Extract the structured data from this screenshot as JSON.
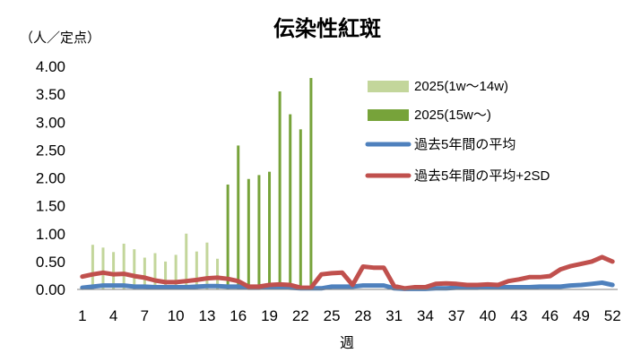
{
  "chart_data": {
    "type": "bar",
    "title": "伝染性紅斑",
    "ylabel": "（人／定点）",
    "xlabel": "週",
    "ylim": [
      0,
      4.0
    ],
    "yticks": [
      "0.00",
      "0.50",
      "1.00",
      "1.50",
      "2.00",
      "2.50",
      "3.00",
      "3.50",
      "4.00"
    ],
    "xticks": [
      "1",
      "4",
      "7",
      "10",
      "13",
      "16",
      "19",
      "22",
      "25",
      "28",
      "31",
      "34",
      "37",
      "40",
      "43",
      "46",
      "49",
      "52"
    ],
    "grid": false,
    "legend_position": "top-right",
    "series": [
      {
        "name": "2025(1w～14w)",
        "kind": "bar",
        "color": "#c3d69b",
        "x": [
          1,
          2,
          3,
          4,
          5,
          6,
          7,
          8,
          9,
          10,
          11,
          12,
          13,
          14
        ],
        "values": [
          0.06,
          0.8,
          0.75,
          0.67,
          0.82,
          0.72,
          0.57,
          0.65,
          0.5,
          0.62,
          1.0,
          0.68,
          0.84,
          0.55
        ]
      },
      {
        "name": "2025(15w～)",
        "kind": "bar",
        "color": "#77a33a",
        "x": [
          15,
          16,
          17,
          18,
          19,
          20,
          21,
          22,
          23
        ],
        "values": [
          1.88,
          2.58,
          1.98,
          2.05,
          2.11,
          3.55,
          3.14,
          2.87,
          3.79
        ]
      },
      {
        "name": "過去5年間の平均",
        "kind": "line",
        "color": "#4f81bd",
        "x": [
          1,
          2,
          3,
          4,
          5,
          6,
          7,
          8,
          9,
          10,
          11,
          12,
          13,
          14,
          15,
          16,
          17,
          18,
          19,
          20,
          21,
          22,
          23,
          24,
          25,
          26,
          27,
          28,
          29,
          30,
          31,
          32,
          33,
          34,
          35,
          36,
          37,
          38,
          39,
          40,
          41,
          42,
          43,
          44,
          45,
          46,
          47,
          48,
          49,
          50,
          51,
          52
        ],
        "values": [
          0.03,
          0.05,
          0.07,
          0.07,
          0.07,
          0.05,
          0.05,
          0.04,
          0.04,
          0.04,
          0.04,
          0.05,
          0.06,
          0.06,
          0.05,
          0.05,
          0.03,
          0.03,
          0.04,
          0.04,
          0.03,
          0.02,
          0.02,
          0.02,
          0.05,
          0.05,
          0.05,
          0.07,
          0.07,
          0.07,
          0.02,
          0.01,
          0.01,
          0.01,
          0.02,
          0.02,
          0.03,
          0.03,
          0.03,
          0.04,
          0.04,
          0.04,
          0.04,
          0.04,
          0.05,
          0.05,
          0.05,
          0.07,
          0.08,
          0.1,
          0.12,
          0.08
        ]
      },
      {
        "name": "過去5年間の平均+2SD",
        "kind": "line",
        "color": "#c0504d",
        "x": [
          1,
          2,
          3,
          4,
          5,
          6,
          7,
          8,
          9,
          10,
          11,
          12,
          13,
          14,
          15,
          16,
          17,
          18,
          19,
          20,
          21,
          22,
          23,
          24,
          25,
          26,
          27,
          28,
          29,
          30,
          31,
          32,
          33,
          34,
          35,
          36,
          37,
          38,
          39,
          40,
          41,
          42,
          43,
          44,
          45,
          46,
          47,
          48,
          49,
          50,
          51,
          52
        ],
        "values": [
          0.23,
          0.27,
          0.3,
          0.27,
          0.28,
          0.24,
          0.21,
          0.16,
          0.13,
          0.13,
          0.15,
          0.17,
          0.2,
          0.21,
          0.19,
          0.15,
          0.05,
          0.05,
          0.08,
          0.09,
          0.08,
          0.03,
          0.03,
          0.27,
          0.29,
          0.3,
          0.08,
          0.41,
          0.39,
          0.39,
          0.06,
          0.02,
          0.04,
          0.04,
          0.1,
          0.11,
          0.1,
          0.08,
          0.08,
          0.09,
          0.08,
          0.15,
          0.18,
          0.22,
          0.22,
          0.24,
          0.36,
          0.42,
          0.46,
          0.5,
          0.58,
          0.5
        ]
      }
    ]
  }
}
